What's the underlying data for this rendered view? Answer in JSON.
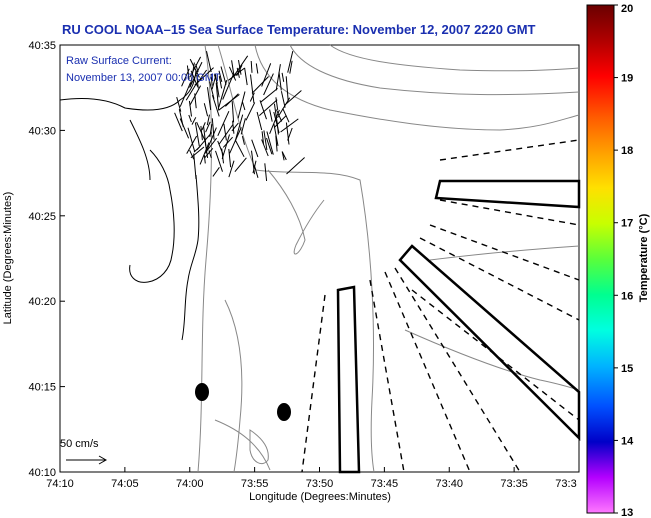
{
  "chart_data": {
    "type": "map",
    "title": "RU COOL  NOAA–15  Sea Surface Temperature:  November 12, 2007 2220 GMT",
    "annotation_lines": [
      "Raw Surface Current:",
      "November 13, 2007 00:00 GMT"
    ],
    "xlabel": "Longitude (Degrees:Minutes)",
    "ylabel": "Latitude (Degrees:Minutes)",
    "x_tick_labels": [
      "74:10",
      "74:05",
      "74:00",
      "73:55",
      "73:50",
      "73:45",
      "73:40",
      "73:35",
      "73:3"
    ],
    "x_range_minutes_west": [
      10,
      30
    ],
    "y_tick_labels": [
      "40:35",
      "40:30",
      "40:25",
      "40:20",
      "40:15",
      "40:10"
    ],
    "y_range_minutes_north": [
      10,
      35
    ],
    "scale_label": "50 cm/s",
    "colorbar": {
      "label": "Temperature (°C)",
      "min": 13,
      "max": 20,
      "tick_labels": [
        "20",
        "19",
        "18",
        "17",
        "16",
        "15",
        "14",
        "13"
      ]
    },
    "markers": [
      {
        "lon": "73:58.8",
        "lat": "40:14.7"
      },
      {
        "lon": "73:52.2",
        "lat": "40:13.5"
      }
    ],
    "colors": {
      "title": "#1a2fb0",
      "current_vectors": "#000000",
      "coastline": "#000000",
      "bathymetry_contours": "#888888"
    }
  }
}
